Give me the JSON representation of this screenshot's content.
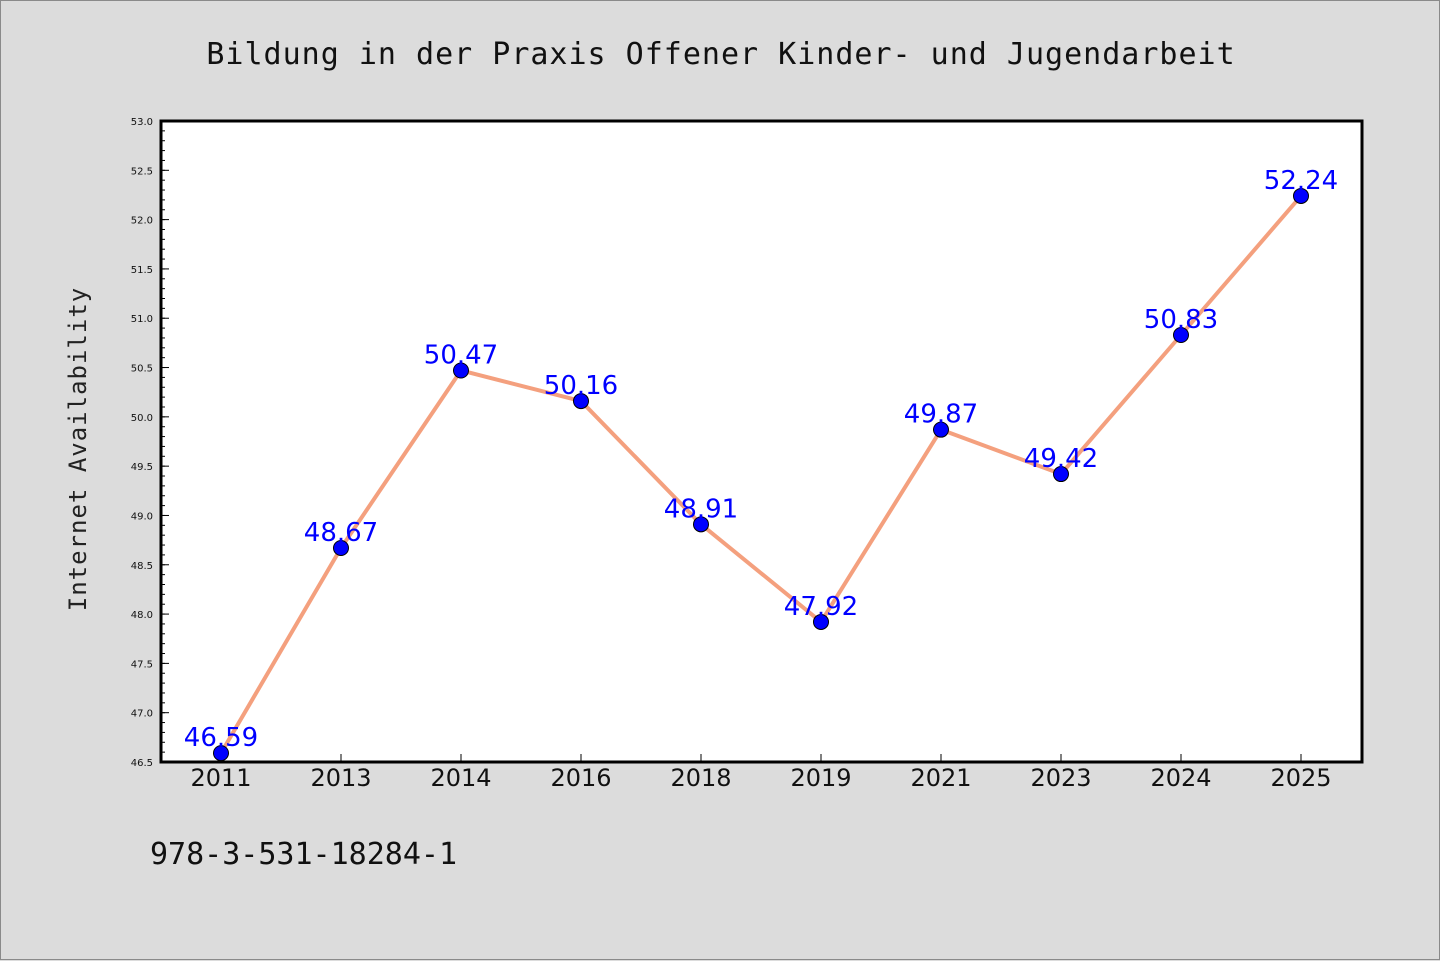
{
  "chart_data": {
    "type": "line",
    "title": "Bildung in der Praxis Offener Kinder- und Jugendarbeit",
    "xlabel": "",
    "ylabel": "Internet Availability",
    "categories": [
      "2011",
      "2013",
      "2014",
      "2016",
      "2018",
      "2019",
      "2021",
      "2023",
      "2024",
      "2025"
    ],
    "values": [
      46.59,
      48.67,
      50.47,
      50.16,
      48.91,
      47.92,
      49.87,
      49.42,
      50.83,
      52.24
    ],
    "data_labels": [
      "46.59",
      "48.67",
      "50.47",
      "50.16",
      "48.91",
      "47.92",
      "49.87",
      "49.42",
      "50.83",
      "52.24"
    ],
    "ylim": [
      46.5,
      53.0
    ],
    "yticks": [
      "46.5",
      "47.0",
      "47.5",
      "48.0",
      "48.5",
      "49.0",
      "49.5",
      "50.0",
      "50.5",
      "51.0",
      "51.5",
      "52.0",
      "52.5",
      "53.0"
    ],
    "grid": false,
    "legend": "none",
    "line_color": "#f4a07e",
    "marker_color": "#0000ff",
    "label_color": "#0000ff",
    "background": "#dcdcdc",
    "plot_background": "#ffffff"
  },
  "footer": {
    "isbn": "978-3-531-18284-1"
  }
}
